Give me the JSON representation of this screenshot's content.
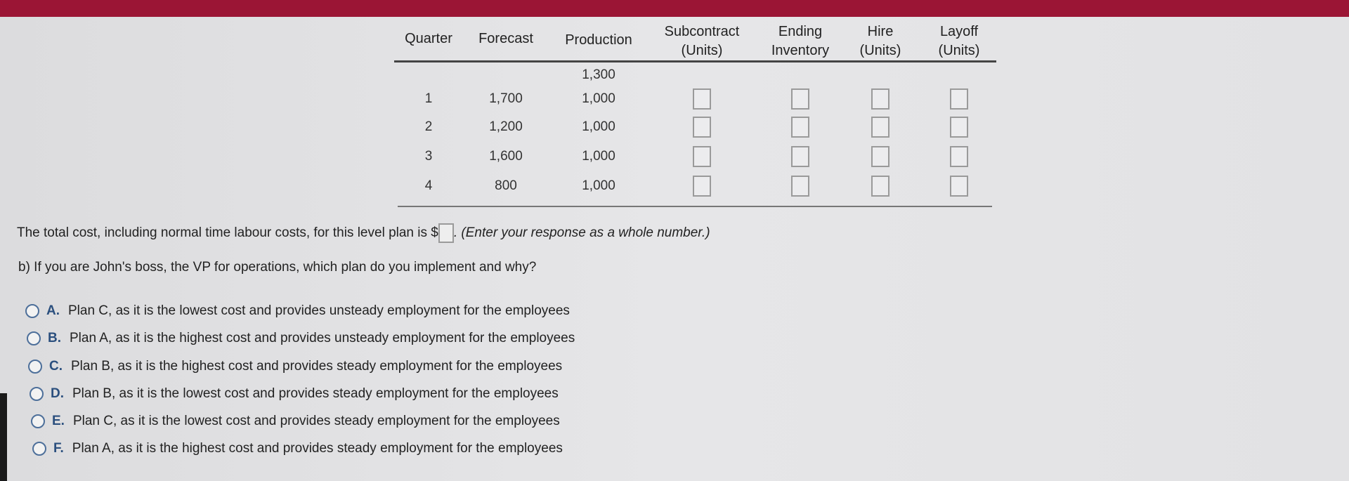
{
  "table": {
    "headers": [
      [
        "Quarter"
      ],
      [
        "Forecast"
      ],
      [
        "Production"
      ],
      [
        "Subcontract",
        "(Units)"
      ],
      [
        "Ending",
        "Inventory"
      ],
      [
        "Hire",
        "(Units)"
      ],
      [
        "Layoff",
        "(Units)"
      ]
    ],
    "initial_production": "1,300",
    "rows": [
      {
        "quarter": "1",
        "forecast": "1,700",
        "production": "1,000"
      },
      {
        "quarter": "2",
        "forecast": "1,200",
        "production": "1,000"
      },
      {
        "quarter": "3",
        "forecast": "1,600",
        "production": "1,000"
      },
      {
        "quarter": "4",
        "forecast": "800",
        "production": "1,000"
      }
    ]
  },
  "total_cost": {
    "prefix": "The total cost, including normal time labour costs, for this level plan is $",
    "value": "",
    "hint": ". (Enter your response as a whole number.)"
  },
  "question_b": "b) If you are John's boss, the VP for operations, which plan do you implement and why?",
  "options": [
    {
      "letter": "A.",
      "text": "Plan C, as it is the lowest cost and provides unsteady employment for the employees"
    },
    {
      "letter": "B.",
      "text": "Plan A, as it is the highest cost and provides unsteady employment for the employees"
    },
    {
      "letter": "C.",
      "text": "Plan B, as it is the highest cost and provides steady employment for the employees"
    },
    {
      "letter": "D.",
      "text": "Plan B, as it is the lowest cost and provides steady employment for the employees"
    },
    {
      "letter": "E.",
      "text": "Plan C, as it is the lowest cost and provides steady employment for the employees"
    },
    {
      "letter": "F.",
      "text": "Plan A, as it is the highest cost and provides steady employment for the employees"
    }
  ],
  "colors": {
    "top_bar": "#9b1535",
    "radio": "#4d6f9a",
    "option_letter": "#2b4f7e"
  }
}
